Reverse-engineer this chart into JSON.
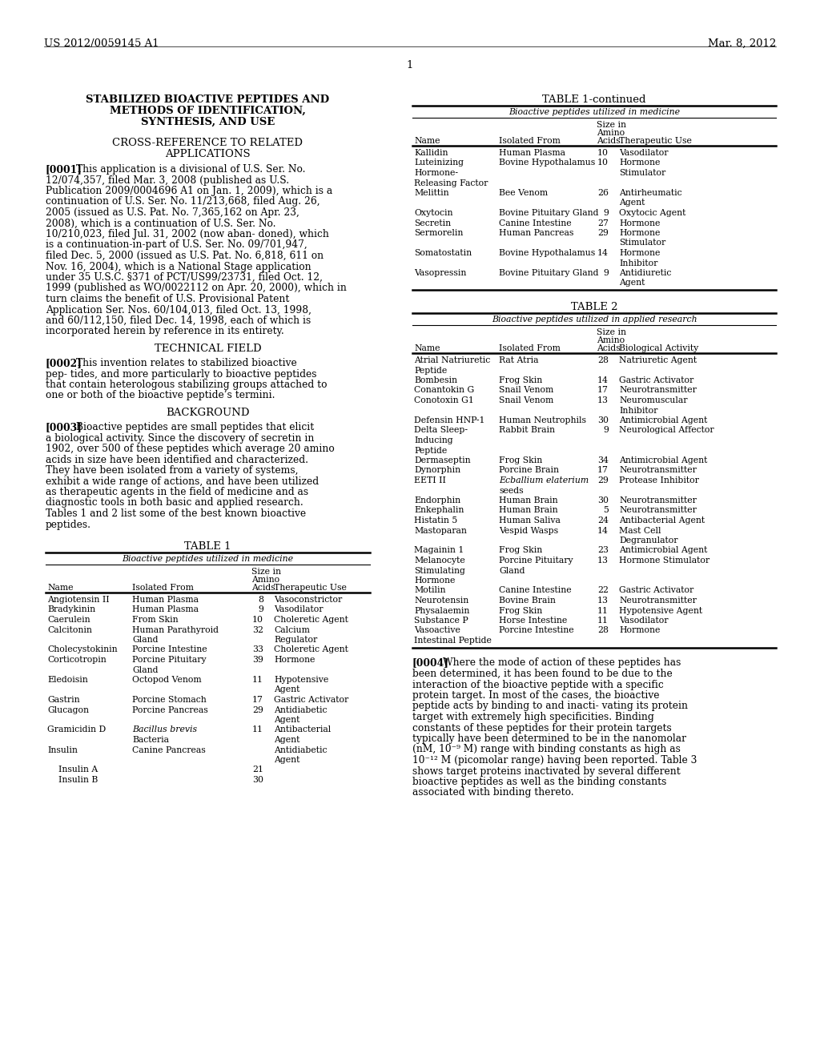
{
  "page_header_left": "US 2012/0059145 A1",
  "page_header_right": "Mar. 8, 2012",
  "page_number": "1",
  "title_line1": "STABILIZED BIOACTIVE PEPTIDES AND",
  "title_line2": "METHODS OF IDENTIFICATION,",
  "title_line3": "SYNTHESIS, AND USE",
  "para0001": "[0001]  This application is a divisional of U.S. Ser. No. 12/074,357, filed Mar. 3, 2008 (published as U.S. Publication 2009/0004696 A1 on Jan. 1, 2009), which is a continuation of U.S. Ser. No. 11/213,668, filed Aug. 26, 2005 (issued as U.S. Pat. No. 7,365,162 on Apr. 23, 2008), which is a continuation of U.S. Ser. No. 10/210,023, filed Jul. 31, 2002 (now aban- doned), which is a continuation-in-part of U.S. Ser. No. 09/701,947, filed Dec. 5, 2000 (issued as U.S. Pat. No. 6,818, 611 on Nov. 16, 2004), which is a National Stage application under 35 U.S.C. §371 of PCT/US99/23731, filed Oct. 12, 1999 (published as WO/0022112 on Apr. 20, 2000), which in turn claims the benefit of U.S. Provisional Patent Application Ser. Nos. 60/104,013, filed Oct. 13, 1998, and 60/112,150, filed Dec. 14, 1998, each of which is incorporated herein by reference in its entirety.",
  "para0002": "[0002]  This invention relates to stabilized bioactive pep- tides, and more particularly to bioactive peptides that contain heterologous stabilizing groups attached to one or both of the bioactive peptide’s termini.",
  "para0003": "[0003]  Bioactive peptides are small peptides that elicit a biological activity. Since the discovery of secretin in 1902, over 500 of these peptides which average 20 amino acids in size have been identified and characterized. They have been isolated from a variety of systems, exhibit a wide range of actions, and have been utilized as therapeutic agents in the field of medicine and as diagnostic tools in both basic and applied research. Tables 1 and 2 list some of the best known bioactive peptides.",
  "para0004": "[0004]  Where the mode of action of these peptides has been determined, it has been found to be due to the interaction of the bioactive peptide with a specific protein target. In most of the cases, the bioactive peptide acts by binding to and inacti- vating its protein target with extremely high specificities. Binding constants of these peptides for their protein targets typically have been determined to be in the nanomolar (nM, 10⁻⁹ M) range with binding constants as high as 10⁻¹² M (picomolar range) having been reported. Table 3 shows target proteins inactivated by several different bioactive peptides as well as the binding constants associated with binding thereto.",
  "table1cont_data": [
    [
      "Kallidin",
      "Human Plasma",
      "10",
      "Vasodilator"
    ],
    [
      "Luteinizing",
      "Bovine Hypothalamus",
      "10",
      "Hormone"
    ],
    [
      "Hormone-",
      "",
      "",
      "Stimulator"
    ],
    [
      "Releasing Factor",
      "",
      "",
      ""
    ],
    [
      "Melittin",
      "Bee Venom",
      "26",
      "Antirheumatic"
    ],
    [
      "",
      "",
      "",
      "Agent"
    ],
    [
      "Oxytocin",
      "Bovine Pituitary Gland",
      "9",
      "Oxytocic Agent"
    ],
    [
      "Secretin",
      "Canine Intestine",
      "27",
      "Hormone"
    ],
    [
      "Sermorelin",
      "Human Pancreas",
      "29",
      "Hormone"
    ],
    [
      "",
      "",
      "",
      "Stimulator"
    ],
    [
      "Somatostatin",
      "Bovine Hypothalamus",
      "14",
      "Hormone"
    ],
    [
      "",
      "",
      "",
      "Inhibitor"
    ],
    [
      "Vasopressin",
      "Bovine Pituitary Gland",
      "9",
      "Antidiuretic"
    ],
    [
      "",
      "",
      "",
      "Agent"
    ]
  ],
  "table2_data": [
    [
      "Atrial Natriuretic",
      "Rat Atria",
      "28",
      "Natriuretic Agent"
    ],
    [
      "Peptide",
      "",
      "",
      ""
    ],
    [
      "Bombesin",
      "Frog Skin",
      "14",
      "Gastric Activator"
    ],
    [
      "Conantokin G",
      "Snail Venom",
      "17",
      "Neurotransmitter"
    ],
    [
      "Conotoxin G1",
      "Snail Venom",
      "13",
      "Neuromuscular"
    ],
    [
      "",
      "",
      "",
      "Inhibitor"
    ],
    [
      "Defensin HNP-1",
      "Human Neutrophils",
      "30",
      "Antimicrobial Agent"
    ],
    [
      "Delta Sleep-",
      "Rabbit Brain",
      "9",
      "Neurological Affector"
    ],
    [
      "Inducing",
      "",
      "",
      ""
    ],
    [
      "Peptide",
      "",
      "",
      ""
    ],
    [
      "Dermaseptin",
      "Frog Skin",
      "34",
      "Antimicrobial Agent"
    ],
    [
      "Dynorphin",
      "Porcine Brain",
      "17",
      "Neurotransmitter"
    ],
    [
      "EETI II",
      "italic:Ecballium elaterium",
      "29",
      "Protease Inhibitor"
    ],
    [
      "",
      "seeds",
      "",
      ""
    ],
    [
      "Endorphin",
      "Human Brain",
      "30",
      "Neurotransmitter"
    ],
    [
      "Enkephalin",
      "Human Brain",
      "5",
      "Neurotransmitter"
    ],
    [
      "Histatin 5",
      "Human Saliva",
      "24",
      "Antibacterial Agent"
    ],
    [
      "Mastoparan",
      "Vespid Wasps",
      "14",
      "Mast Cell"
    ],
    [
      "",
      "",
      "",
      "Degranulator"
    ],
    [
      "Magainin 1",
      "Frog Skin",
      "23",
      "Antimicrobial Agent"
    ],
    [
      "Melanocyte",
      "Porcine Pituitary",
      "13",
      "Hormone Stimulator"
    ],
    [
      "Stimulating",
      "Gland",
      "",
      ""
    ],
    [
      "Hormone",
      "",
      "",
      ""
    ],
    [
      "Motilin",
      "Canine Intestine",
      "22",
      "Gastric Activator"
    ],
    [
      "Neurotensin",
      "Bovine Brain",
      "13",
      "Neurotransmitter"
    ],
    [
      "Physalaemin",
      "Frog Skin",
      "11",
      "Hypotensive Agent"
    ],
    [
      "Substance P",
      "Horse Intestine",
      "11",
      "Vasodilator"
    ],
    [
      "Vasoactive",
      "Porcine Intestine",
      "28",
      "Hormone"
    ],
    [
      "Intestinal Peptide",
      "",
      "",
      ""
    ]
  ],
  "table1_data": [
    [
      "Angiotensin II",
      "Human Plasma",
      "8",
      "Vasoconstrictor"
    ],
    [
      "Bradykinin",
      "Human Plasma",
      "9",
      "Vasodilator"
    ],
    [
      "Caerulein",
      "From Skin",
      "10",
      "Choleretic Agent"
    ],
    [
      "Calcitonin",
      "Human Parathyroid",
      "32",
      "Calcium"
    ],
    [
      "",
      "Gland",
      "",
      "Regulator"
    ],
    [
      "Cholecystokinin",
      "Porcine Intestine",
      "33",
      "Choleretic Agent"
    ],
    [
      "Corticotropin",
      "Porcine Pituitary",
      "39",
      "Hormone"
    ],
    [
      "",
      "Gland",
      "",
      ""
    ],
    [
      "Eledoisin",
      "Octopod Venom",
      "11",
      "Hypotensive"
    ],
    [
      "",
      "",
      "",
      "Agent"
    ],
    [
      "Gastrin",
      "Porcine Stomach",
      "17",
      "Gastric Activator"
    ],
    [
      "Glucagon",
      "Porcine Pancreas",
      "29",
      "Antidiabetic"
    ],
    [
      "",
      "",
      "",
      "Agent"
    ],
    [
      "Gramicidin D",
      "italic:Bacillus brevis",
      "11",
      "Antibacterial"
    ],
    [
      "",
      "Bacteria",
      "",
      "Agent"
    ],
    [
      "Insulin",
      "Canine Pancreas",
      "",
      "Antidiabetic"
    ],
    [
      "",
      "",
      "",
      "Agent"
    ],
    [
      "    Insulin A",
      "",
      "21",
      ""
    ],
    [
      "    Insulin B",
      "",
      "30",
      ""
    ]
  ]
}
